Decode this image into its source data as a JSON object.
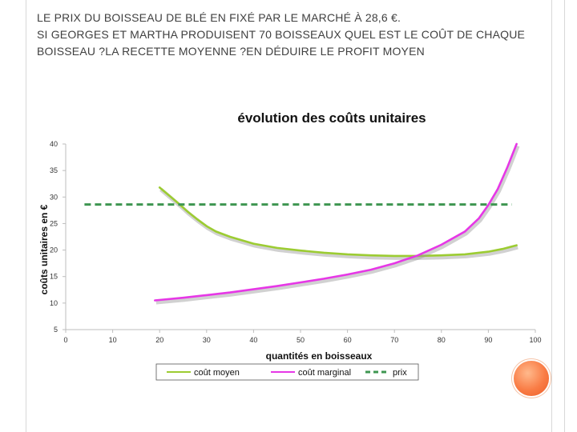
{
  "slide": {
    "line1": "Le prix du boisseau de blé en fixé par le marché à 28,6 €.",
    "line2": "Si Georges et Martha produisent 70 boisseaux quel est le coût de chaque boisseau ?La recette moyenne ?En déduire le profit moyen"
  },
  "chart_data": {
    "type": "line",
    "title": "évolution des coûts unitaires",
    "xlabel": "quantités en boisseaux",
    "ylabel": "coûts unitaires en €",
    "xlim": [
      0,
      100
    ],
    "ylim": [
      5,
      40
    ],
    "x_ticks": [
      "0",
      "10",
      "20",
      "30",
      "40",
      "50",
      "60",
      "70",
      "80",
      "90",
      "100"
    ],
    "y_ticks": [
      "5",
      "10",
      "15",
      "20",
      "25",
      "30",
      "35",
      "40"
    ],
    "legend_position": "bottom",
    "grid": false,
    "series": [
      {
        "name": "coût moyen",
        "color": "#9ccc32",
        "style": "solid",
        "points": [
          [
            20,
            31.8
          ],
          [
            22,
            30.3
          ],
          [
            24,
            28.8
          ],
          [
            26,
            27.2
          ],
          [
            28,
            25.8
          ],
          [
            30,
            24.5
          ],
          [
            32,
            23.5
          ],
          [
            35,
            22.5
          ],
          [
            40,
            21.2
          ],
          [
            45,
            20.4
          ],
          [
            50,
            19.9
          ],
          [
            55,
            19.5
          ],
          [
            60,
            19.2
          ],
          [
            65,
            19.0
          ],
          [
            70,
            18.9
          ],
          [
            75,
            18.9
          ],
          [
            80,
            19.0
          ],
          [
            85,
            19.2
          ],
          [
            90,
            19.7
          ],
          [
            93,
            20.2
          ],
          [
            96,
            20.9
          ]
        ]
      },
      {
        "name": "coût marginal",
        "color": "#e637e6",
        "style": "solid",
        "points": [
          [
            19,
            10.5
          ],
          [
            25,
            11.0
          ],
          [
            30,
            11.5
          ],
          [
            35,
            12.0
          ],
          [
            40,
            12.6
          ],
          [
            45,
            13.2
          ],
          [
            50,
            13.9
          ],
          [
            55,
            14.6
          ],
          [
            60,
            15.4
          ],
          [
            65,
            16.3
          ],
          [
            70,
            17.5
          ],
          [
            75,
            19.0
          ],
          [
            80,
            21.0
          ],
          [
            85,
            23.5
          ],
          [
            88,
            26.0
          ],
          [
            90,
            28.5
          ],
          [
            92,
            31.5
          ],
          [
            94,
            35.5
          ],
          [
            96,
            40.0
          ]
        ]
      },
      {
        "name": "prix",
        "color": "#3e9651",
        "style": "dashed",
        "points": [
          [
            4,
            28.6
          ],
          [
            95,
            28.6
          ]
        ]
      }
    ]
  }
}
